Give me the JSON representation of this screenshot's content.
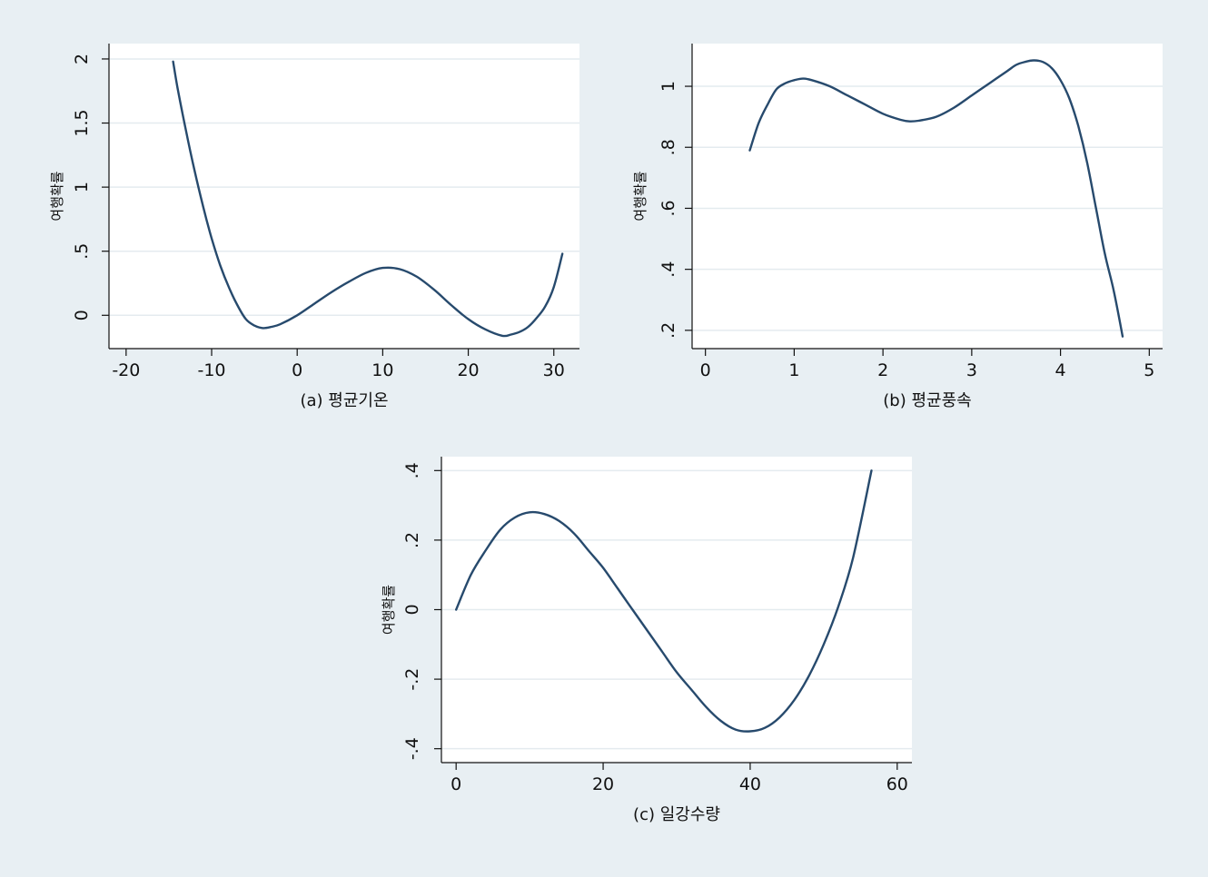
{
  "background_color": "#e8eff3",
  "plot_background_color": "#ffffff",
  "line_color": "#274a6d",
  "grid_color": "#e4ebef",
  "chart_data": [
    {
      "type": "line",
      "xlabel": "(a) 평균기온",
      "ylabel": "여행확률",
      "xlim": [
        -22,
        33
      ],
      "ylim": [
        -0.26,
        2.12
      ],
      "xticks": [
        -20,
        -10,
        0,
        10,
        20,
        30
      ],
      "xtick_labels": [
        "-20",
        "-10",
        "0",
        "10",
        "20",
        "30"
      ],
      "yticks": [
        0,
        0.5,
        1,
        1.5,
        2
      ],
      "ytick_labels": [
        "0",
        ".5",
        "1",
        "1.5",
        "2"
      ],
      "grid": true,
      "series": [
        {
          "x": [
            -14.5,
            -14,
            -13,
            -12,
            -11,
            -10,
            -9,
            -8,
            -7,
            -6,
            -5,
            -4,
            -3,
            -2,
            0,
            2,
            4,
            6,
            8,
            10,
            12,
            14,
            16,
            18,
            20,
            22,
            24,
            25,
            26,
            27,
            28,
            29,
            30,
            31
          ],
          "y": [
            1.98,
            1.78,
            1.44,
            1.13,
            0.85,
            0.6,
            0.39,
            0.22,
            0.08,
            -0.03,
            -0.08,
            -0.1,
            -0.09,
            -0.07,
            0.0,
            0.09,
            0.18,
            0.26,
            0.33,
            0.37,
            0.36,
            0.3,
            0.2,
            0.08,
            -0.03,
            -0.11,
            -0.16,
            -0.15,
            -0.13,
            -0.09,
            -0.02,
            0.07,
            0.22,
            0.48
          ]
        }
      ]
    },
    {
      "type": "line",
      "xlabel": "(b) 평균풍속",
      "ylabel": "여행확률",
      "xlim": [
        -0.15,
        5.15
      ],
      "ylim": [
        0.14,
        1.14
      ],
      "xticks": [
        0,
        1,
        2,
        3,
        4,
        5
      ],
      "xtick_labels": [
        "0",
        "1",
        "2",
        "3",
        "4",
        "5"
      ],
      "yticks": [
        0.2,
        0.4,
        0.6,
        0.8,
        1
      ],
      "ytick_labels": [
        ".2",
        ".4",
        ".6",
        ".8",
        "1"
      ],
      "grid": true,
      "series": [
        {
          "x": [
            0.5,
            0.6,
            0.7,
            0.8,
            0.9,
            1.0,
            1.1,
            1.2,
            1.4,
            1.6,
            1.8,
            2.0,
            2.2,
            2.3,
            2.4,
            2.6,
            2.8,
            3.0,
            3.2,
            3.4,
            3.5,
            3.6,
            3.7,
            3.8,
            3.9,
            4.0,
            4.1,
            4.2,
            4.3,
            4.4,
            4.5,
            4.6,
            4.7
          ],
          "y": [
            0.79,
            0.88,
            0.94,
            0.99,
            1.01,
            1.02,
            1.025,
            1.02,
            1.0,
            0.97,
            0.94,
            0.91,
            0.89,
            0.885,
            0.887,
            0.9,
            0.93,
            0.97,
            1.01,
            1.05,
            1.07,
            1.08,
            1.085,
            1.08,
            1.06,
            1.02,
            0.96,
            0.87,
            0.75,
            0.6,
            0.45,
            0.33,
            0.18
          ]
        }
      ]
    },
    {
      "type": "line",
      "xlabel": "(c) 일강수량",
      "ylabel": "여행확률",
      "xlim": [
        -2,
        62
      ],
      "ylim": [
        -0.44,
        0.44
      ],
      "xticks": [
        0,
        20,
        40,
        60
      ],
      "xtick_labels": [
        "0",
        "20",
        "40",
        "60"
      ],
      "yticks": [
        -0.4,
        -0.2,
        0,
        0.2,
        0.4
      ],
      "ytick_labels": [
        "-.4",
        "-.2",
        "0",
        ".2",
        ".4"
      ],
      "grid": true,
      "series": [
        {
          "x": [
            0,
            2,
            4,
            6,
            8,
            10,
            12,
            14,
            16,
            18,
            20,
            22,
            24,
            26,
            28,
            30,
            32,
            34,
            36,
            38,
            40,
            42,
            44,
            46,
            48,
            50,
            52,
            54,
            56.5
          ],
          "y": [
            0.0,
            0.1,
            0.17,
            0.23,
            0.265,
            0.28,
            0.275,
            0.255,
            0.22,
            0.17,
            0.12,
            0.06,
            0.0,
            -0.06,
            -0.12,
            -0.18,
            -0.23,
            -0.28,
            -0.32,
            -0.345,
            -0.35,
            -0.34,
            -0.31,
            -0.26,
            -0.19,
            -0.1,
            0.01,
            0.15,
            0.4
          ]
        }
      ]
    }
  ]
}
